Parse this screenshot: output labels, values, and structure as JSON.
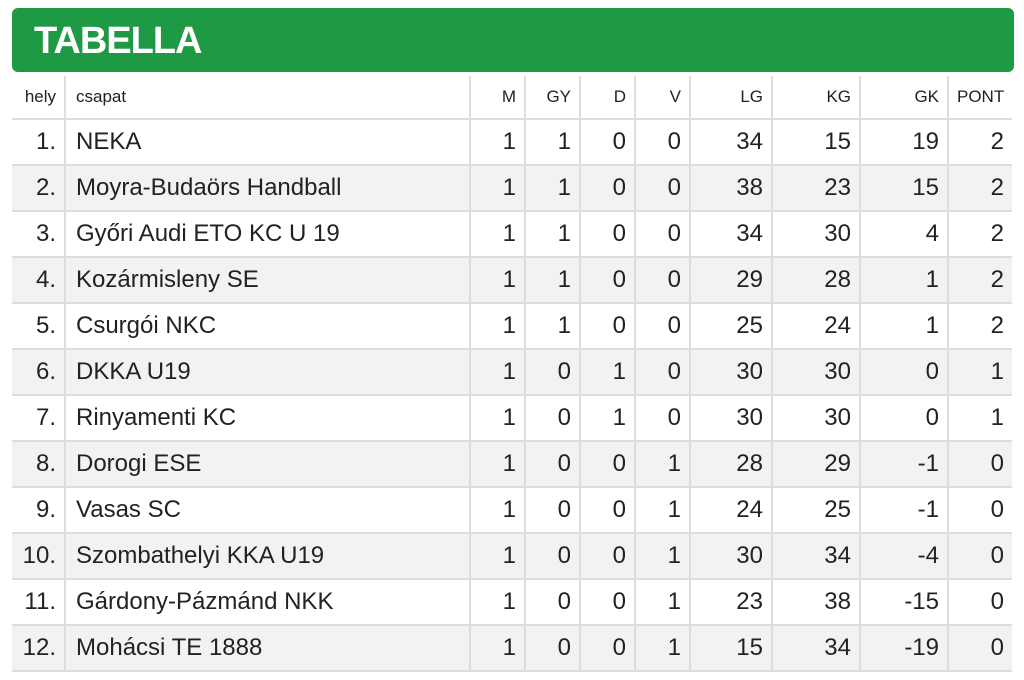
{
  "header": {
    "title": "TABELLA"
  },
  "table": {
    "columns": [
      "hely",
      "csapat",
      "M",
      "GY",
      "D",
      "V",
      "LG",
      "KG",
      "GK",
      "PONT"
    ],
    "rows": [
      [
        "1.",
        "NEKA",
        "1",
        "1",
        "0",
        "0",
        "34",
        "15",
        "19",
        "2"
      ],
      [
        "2.",
        "Moyra-Budaörs Handball",
        "1",
        "1",
        "0",
        "0",
        "38",
        "23",
        "15",
        "2"
      ],
      [
        "3.",
        "Győri Audi ETO KC U 19",
        "1",
        "1",
        "0",
        "0",
        "34",
        "30",
        "4",
        "2"
      ],
      [
        "4.",
        "Kozármisleny SE",
        "1",
        "1",
        "0",
        "0",
        "29",
        "28",
        "1",
        "2"
      ],
      [
        "5.",
        "Csurgói NKC",
        "1",
        "1",
        "0",
        "0",
        "25",
        "24",
        "1",
        "2"
      ],
      [
        "6.",
        "DKKA U19",
        "1",
        "0",
        "1",
        "0",
        "30",
        "30",
        "0",
        "1"
      ],
      [
        "7.",
        "Rinyamenti KC",
        "1",
        "0",
        "1",
        "0",
        "30",
        "30",
        "0",
        "1"
      ],
      [
        "8.",
        "Dorogi ESE",
        "1",
        "0",
        "0",
        "1",
        "28",
        "29",
        "-1",
        "0"
      ],
      [
        "9.",
        "Vasas SC",
        "1",
        "0",
        "0",
        "1",
        "24",
        "25",
        "-1",
        "0"
      ],
      [
        "10.",
        "Szombathelyi KKA U19",
        "1",
        "0",
        "0",
        "1",
        "30",
        "34",
        "-4",
        "0"
      ],
      [
        "11.",
        "Gárdony-Pázmánd NKK",
        "1",
        "0",
        "0",
        "1",
        "23",
        "38",
        "-15",
        "0"
      ],
      [
        "12.",
        "Mohácsi TE 1888",
        "1",
        "0",
        "0",
        "1",
        "15",
        "34",
        "-19",
        "0"
      ]
    ]
  }
}
